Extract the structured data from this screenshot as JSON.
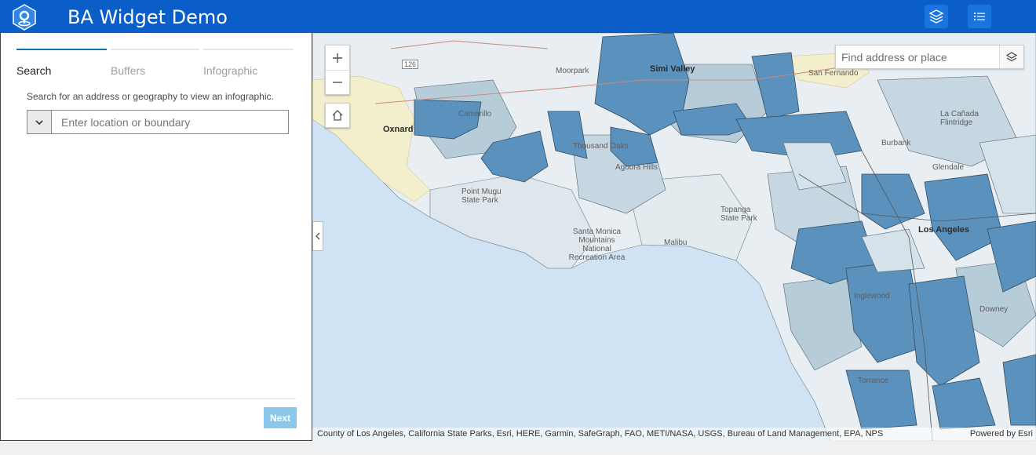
{
  "header": {
    "title": "BA Widget Demo"
  },
  "panel": {
    "tabs": [
      {
        "label": "Search"
      },
      {
        "label": "Buffers"
      },
      {
        "label": "Infographic"
      }
    ],
    "hint": "Search for an address or geography to view an infographic.",
    "location_placeholder": "Enter location or boundary",
    "next_label": "Next"
  },
  "map": {
    "search_placeholder": "Find address or place",
    "attribution": "County of Los Angeles, California State Parks, Esri, HERE, Garmin, SafeGraph, FAO, METI/NASA, USGS, Bureau of Land Management, EPA, NPS",
    "powered_by": "Powered by Esri",
    "places": {
      "simi_valley": "Simi Valley",
      "oxnard": "Oxnard",
      "camarillo": "Camarillo",
      "thousand_oaks": "Thousand Oaks",
      "moorpark": "Moorpark",
      "san_fernando": "San Fernando",
      "la_canada_flintridge": "La Cañada Flintridge",
      "glendale": "Glendale",
      "burbank": "Burbank",
      "los_angeles": "Los Angeles",
      "agoura_hills": "Agoura Hills",
      "point_mugu_state_park": "Point Mugu State Park",
      "topanga_state_park": "Topanga State Park",
      "santa_monica_mountains": "Santa Monica Mountains National Recreation Area",
      "malibu": "Malibu",
      "inglewood": "Inglewood",
      "torrance": "Torrance",
      "downey": "Downey",
      "route_126": "126"
    }
  },
  "colors": {
    "header_bg": "#0b5ec7",
    "accent": "#0a72b8",
    "next_button": "#8cc7ec",
    "map_water": "#cfe3f5",
    "class_dark": "#5b91bd",
    "class_mid": "#a9c4d6",
    "class_light": "#d5e2ea",
    "class_lightest": "#e8eef1"
  }
}
